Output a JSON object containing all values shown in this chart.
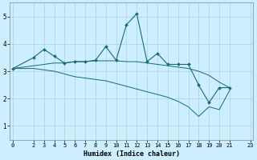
{
  "xlabel": "Humidex (Indice chaleur)",
  "bg_color": "#cceeff",
  "line_color": "#1a6b6b",
  "grid_color": "#aad4d4",
  "x_main": [
    0,
    2,
    3,
    4,
    5,
    6,
    7,
    8,
    9,
    10,
    11,
    12,
    13,
    14,
    15,
    16,
    17,
    18,
    19,
    20,
    21,
    23
  ],
  "y_main": [
    3.1,
    3.5,
    3.8,
    3.55,
    3.3,
    3.35,
    3.35,
    3.4,
    3.9,
    3.4,
    4.7,
    5.1,
    3.35,
    3.65,
    3.25,
    3.25,
    3.25,
    2.5,
    1.85,
    2.4,
    2.4,
    null
  ],
  "x_upper": [
    0,
    2,
    3,
    4,
    5,
    6,
    7,
    8,
    9,
    10,
    11,
    12,
    13,
    14,
    15,
    16,
    17,
    18,
    19,
    20,
    21,
    23
  ],
  "y_upper": [
    3.1,
    3.2,
    3.25,
    3.3,
    3.3,
    3.35,
    3.35,
    3.38,
    3.38,
    3.38,
    3.35,
    3.35,
    3.3,
    3.25,
    3.2,
    3.15,
    3.1,
    3.0,
    2.85,
    2.6,
    2.4,
    null
  ],
  "x_lower": [
    0,
    2,
    3,
    4,
    5,
    6,
    7,
    8,
    9,
    10,
    11,
    12,
    13,
    14,
    15,
    16,
    17,
    18,
    19,
    20,
    21,
    23
  ],
  "y_lower": [
    3.1,
    3.1,
    3.05,
    3.0,
    2.9,
    2.8,
    2.75,
    2.7,
    2.65,
    2.55,
    2.45,
    2.35,
    2.25,
    2.15,
    2.05,
    1.9,
    1.7,
    1.35,
    1.7,
    1.6,
    2.3,
    null
  ],
  "ylim": [
    0.5,
    5.5
  ],
  "xlim": [
    -0.3,
    23.3
  ],
  "yticks": [
    1,
    2,
    3,
    4,
    5
  ],
  "xticks": [
    0,
    2,
    3,
    4,
    5,
    6,
    7,
    8,
    9,
    10,
    11,
    12,
    13,
    14,
    15,
    16,
    17,
    18,
    19,
    20,
    21,
    23
  ]
}
